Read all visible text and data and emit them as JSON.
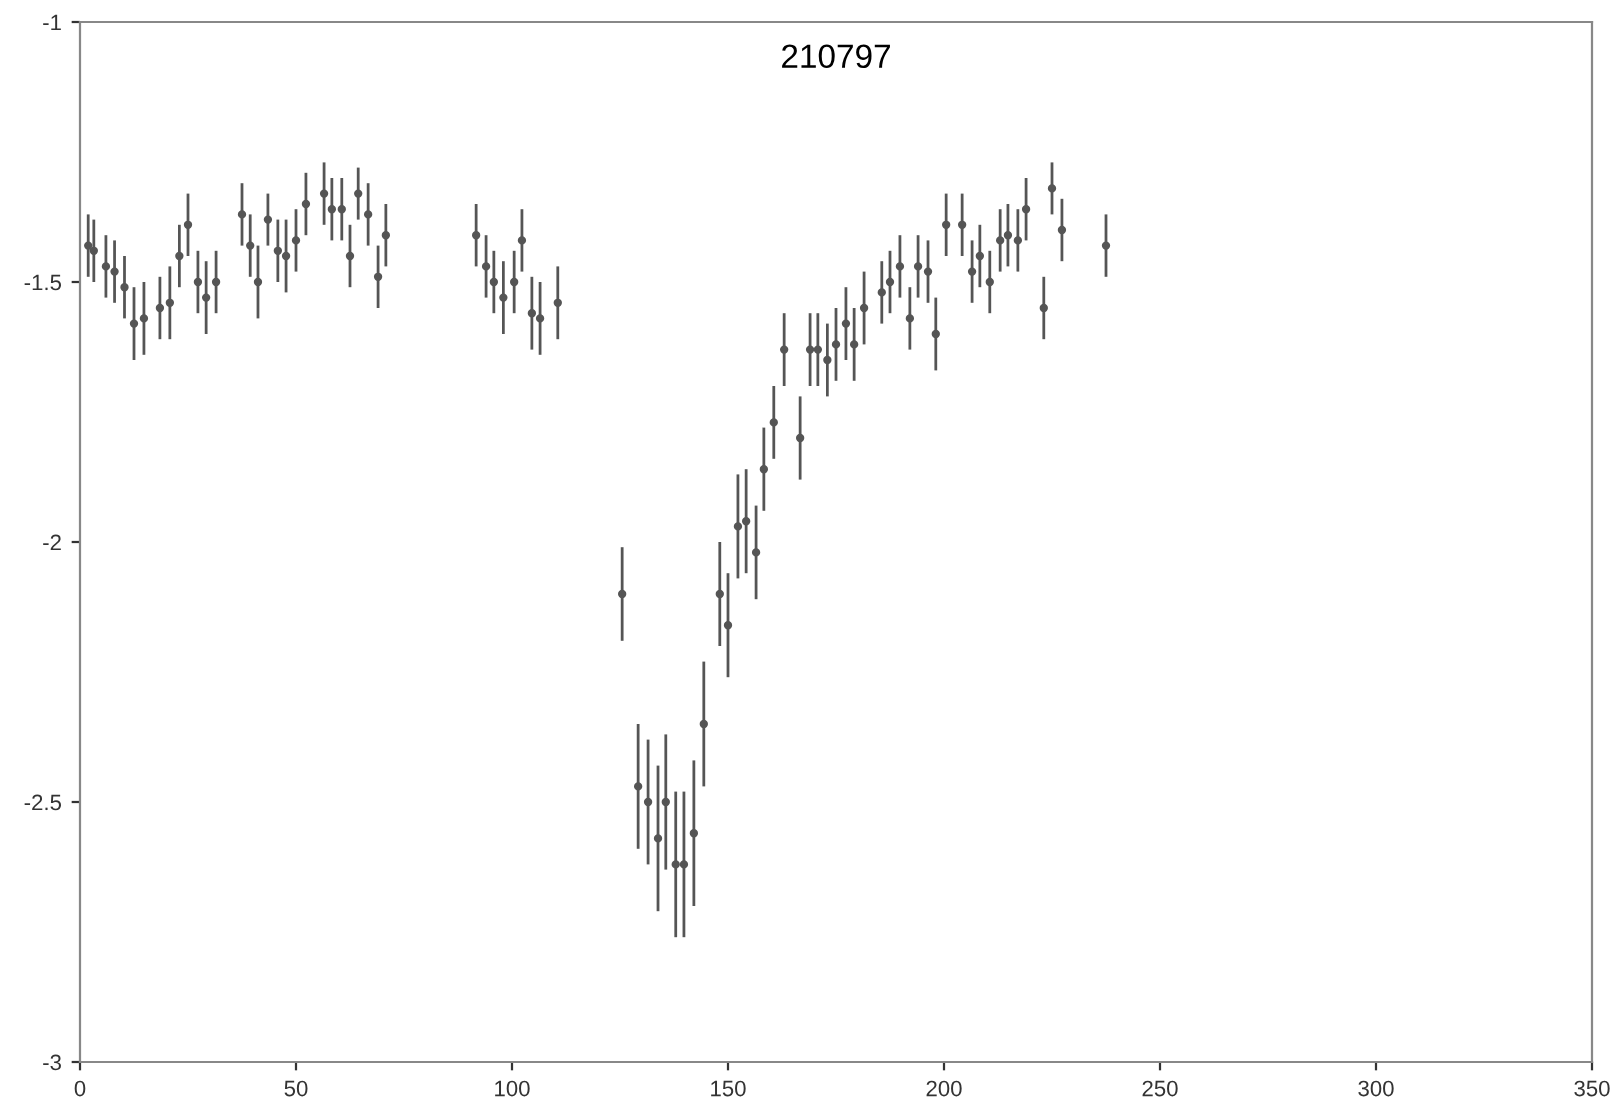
{
  "chart_data": {
    "type": "scatter",
    "title": "210797",
    "x": [
      1.9,
      3.2,
      6,
      8,
      10.3,
      12.5,
      14.8,
      18.5,
      20.8,
      23,
      25,
      27.3,
      29.2,
      31.5,
      37.5,
      39.4,
      41.2,
      43.5,
      45.8,
      47.7,
      50,
      52.3,
      56.5,
      58.3,
      60.6,
      62.5,
      64.4,
      66.7,
      69,
      70.8,
      91.7,
      94,
      95.8,
      98,
      100.5,
      102.3,
      104.6,
      106.5,
      110.6,
      125.5,
      129.2,
      131.5,
      133.8,
      135.6,
      137.9,
      139.8,
      142.1,
      144.4,
      148.1,
      150,
      152.3,
      154.2,
      156.5,
      158.3,
      160.6,
      163,
      166.7,
      169,
      170.8,
      173,
      175,
      177.3,
      179.2,
      181.5,
      185.6,
      187.5,
      189.8,
      192.1,
      194,
      196.3,
      198.1,
      200.5,
      204.2,
      206.5,
      208.3,
      210.6,
      213,
      214.8,
      217.1,
      219,
      223.1,
      225,
      227.3,
      237.5
    ],
    "values": [
      -1.43,
      -1.44,
      -1.47,
      -1.48,
      -1.51,
      -1.58,
      -1.57,
      -1.55,
      -1.54,
      -1.45,
      -1.39,
      -1.5,
      -1.53,
      -1.5,
      -1.37,
      -1.43,
      -1.5,
      -1.38,
      -1.44,
      -1.45,
      -1.42,
      -1.35,
      -1.33,
      -1.36,
      -1.36,
      -1.45,
      -1.33,
      -1.37,
      -1.49,
      -1.41,
      -1.41,
      -1.47,
      -1.5,
      -1.53,
      -1.5,
      -1.42,
      -1.56,
      -1.57,
      -1.54,
      -2.1,
      -2.47,
      -2.5,
      -2.57,
      -2.5,
      -2.62,
      -2.62,
      -2.56,
      -2.35,
      -2.1,
      -2.16,
      -1.97,
      -1.96,
      -2.02,
      -1.86,
      -1.77,
      -1.63,
      -1.8,
      -1.63,
      -1.63,
      -1.65,
      -1.62,
      -1.58,
      -1.62,
      -1.55,
      -1.52,
      -1.5,
      -1.47,
      -1.57,
      -1.47,
      -1.48,
      -1.6,
      -1.39,
      -1.39,
      -1.48,
      -1.45,
      -1.5,
      -1.42,
      -1.41,
      -1.42,
      -1.36,
      -1.55,
      -1.32,
      -1.4,
      -1.43
    ],
    "errors": [
      0.06,
      0.06,
      0.06,
      0.06,
      0.06,
      0.07,
      0.07,
      0.06,
      0.07,
      0.06,
      0.06,
      0.06,
      0.07,
      0.06,
      0.06,
      0.06,
      0.07,
      0.05,
      0.06,
      0.07,
      0.06,
      0.06,
      0.06,
      0.06,
      0.06,
      0.06,
      0.05,
      0.06,
      0.06,
      0.06,
      0.06,
      0.06,
      0.06,
      0.07,
      0.06,
      0.06,
      0.07,
      0.07,
      0.07,
      0.09,
      0.12,
      0.12,
      0.14,
      0.13,
      0.14,
      0.14,
      0.14,
      0.12,
      0.1,
      0.1,
      0.1,
      0.1,
      0.09,
      0.08,
      0.07,
      0.07,
      0.08,
      0.07,
      0.07,
      0.07,
      0.07,
      0.07,
      0.07,
      0.07,
      0.06,
      0.06,
      0.06,
      0.06,
      0.06,
      0.06,
      0.07,
      0.06,
      0.06,
      0.06,
      0.06,
      0.06,
      0.06,
      0.06,
      0.06,
      0.06,
      0.06,
      0.05,
      0.06,
      0.06
    ],
    "color": "#555555",
    "marker": "circle",
    "xlim": [
      0,
      350
    ],
    "ylim": [
      -3,
      -1
    ],
    "xticks": [
      0,
      50,
      100,
      150,
      200,
      250,
      300,
      350
    ],
    "yticks": [
      -3,
      -2.5,
      -2,
      -1.5,
      -1
    ],
    "grid": false
  }
}
